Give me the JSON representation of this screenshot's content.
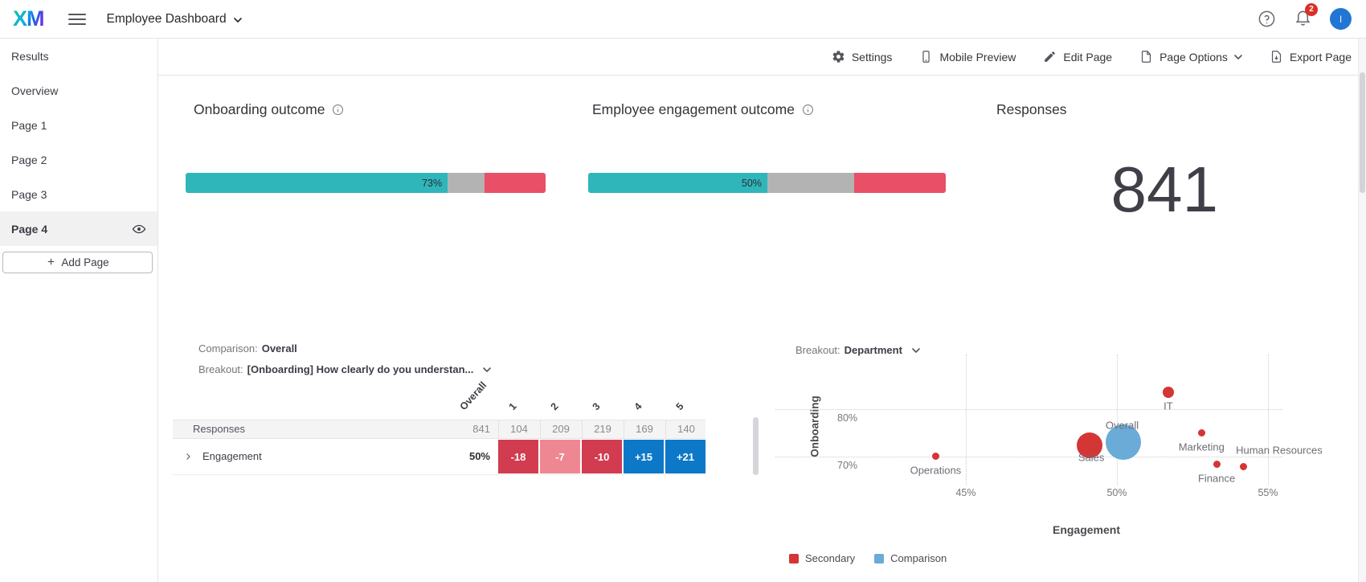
{
  "topbar": {
    "logo": "XM",
    "title": "Employee Dashboard",
    "notification_count": "2",
    "avatar_initial": "I"
  },
  "toolbar": {
    "items": [
      {
        "label": "Settings",
        "icon": "gear-icon"
      },
      {
        "label": "Mobile Preview",
        "icon": "mobile-icon"
      },
      {
        "label": "Edit Page",
        "icon": "pencil-icon"
      },
      {
        "label": "Page Options",
        "icon": "page-icon",
        "has_chevron": true
      },
      {
        "label": "Export Page",
        "icon": "export-icon"
      }
    ]
  },
  "sidebar": {
    "items": [
      {
        "label": "Results",
        "active": false
      },
      {
        "label": "Overview",
        "active": false
      },
      {
        "label": "Page 1",
        "active": false
      },
      {
        "label": "Page 2",
        "active": false
      },
      {
        "label": "Page 3",
        "active": false
      },
      {
        "label": "Page 4",
        "active": true
      }
    ],
    "add_page_label": "Add Page"
  },
  "colors": {
    "teal": "#2fb6ba",
    "bar_gray": "#b3b3b3",
    "bar_red": "#e94f66",
    "cell_neg": "#d23c50",
    "cell_neg_light": "#ee8792",
    "cell_pos": "#0d78c8",
    "scatter_red": "#d43535",
    "scatter_blue": "#6aabd8"
  },
  "chart_data": [
    {
      "type": "bar",
      "id": "onboarding",
      "title": "Onboarding outcome",
      "value_label": "73%",
      "value": 73,
      "segments": [
        {
          "name": "achieved",
          "color": "#2fb6ba",
          "pct": 72.8
        },
        {
          "name": "neutral",
          "color": "#b3b3b3",
          "pct": 10.3
        },
        {
          "name": "gap",
          "color": "#e94f66",
          "pct": 16.9
        }
      ]
    },
    {
      "type": "bar",
      "id": "engagement",
      "title": "Employee engagement outcome",
      "value_label": "50%",
      "value": 50,
      "segments": [
        {
          "name": "achieved",
          "color": "#2fb6ba",
          "pct": 50.1
        },
        {
          "name": "neutral",
          "color": "#b3b3b3",
          "pct": 24.3
        },
        {
          "name": "gap",
          "color": "#e94f66",
          "pct": 25.6
        }
      ]
    },
    {
      "type": "number",
      "title": "Responses",
      "value": "841"
    },
    {
      "type": "table",
      "comparison_label": "Comparison:",
      "comparison_value": "Overall",
      "breakout_label": "Breakout:",
      "breakout_value": "[Onboarding] How clearly do you understan...",
      "overall_header": "Overall",
      "col_headers": [
        "1",
        "2",
        "3",
        "4",
        "5"
      ],
      "rows": [
        {
          "label": "Responses",
          "overall": "841",
          "expandable": false,
          "cells": [
            {
              "text": "104"
            },
            {
              "text": "209"
            },
            {
              "text": "219"
            },
            {
              "text": "169"
            },
            {
              "text": "140"
            }
          ]
        },
        {
          "label": "Engagement",
          "overall": "50%",
          "expandable": true,
          "cells": [
            {
              "text": "-18",
              "tone": "neg"
            },
            {
              "text": "-7",
              "tone": "neg_light"
            },
            {
              "text": "-10",
              "tone": "neg"
            },
            {
              "text": "+15",
              "tone": "pos"
            },
            {
              "text": "+21",
              "tone": "pos"
            }
          ]
        }
      ]
    },
    {
      "type": "scatter",
      "breakout_label": "Breakout:",
      "breakout_value": "Department",
      "xlabel": "Engagement",
      "ylabel": "Onboarding",
      "x_ticks": [
        {
          "value": 45,
          "label": "45%"
        },
        {
          "value": 50,
          "label": "50%"
        },
        {
          "value": 55,
          "label": "55%"
        }
      ],
      "y_ticks": [
        {
          "value": 80,
          "label": "80%"
        },
        {
          "value": 70,
          "label": "70%"
        }
      ],
      "series": [
        {
          "name": "Secondary",
          "color": "#d43535",
          "points": [
            {
              "label": "Operations",
              "x": 44.0,
              "y": 70.1,
              "r": 4.5,
              "label_dx": 0,
              "label_dy": 18
            },
            {
              "label": "Sales",
              "x": 49.1,
              "y": 72.4,
              "r": 16,
              "label_dx": 2,
              "label_dy": 15
            },
            {
              "label": "IT",
              "x": 51.7,
              "y": 83.5,
              "r": 7,
              "label_dx": 0,
              "label_dy": 17
            },
            {
              "label": "Marketing",
              "x": 52.8,
              "y": 75.0,
              "r": 4.5,
              "label_dx": 0,
              "label_dy": 17
            },
            {
              "label": "Finance",
              "x": 53.3,
              "y": 68.4,
              "r": 4.5,
              "label_dx": 0,
              "label_dy": 18
            },
            {
              "label": "Human Resources",
              "x": 54.2,
              "y": 67.9,
              "r": 4.5,
              "label_dx": 44,
              "label_dy": -20
            }
          ]
        },
        {
          "name": "Comparison",
          "color": "#6aabd8",
          "points": [
            {
              "label": "Overall",
              "x": 50.2,
              "y": 73.1,
              "r": 22,
              "label_dx": -1,
              "label_dy": -21
            }
          ]
        }
      ],
      "legend": [
        {
          "label": "Secondary",
          "color": "#d43535"
        },
        {
          "label": "Comparison",
          "color": "#6aabd8"
        }
      ],
      "legend_position": "bottom"
    }
  ]
}
